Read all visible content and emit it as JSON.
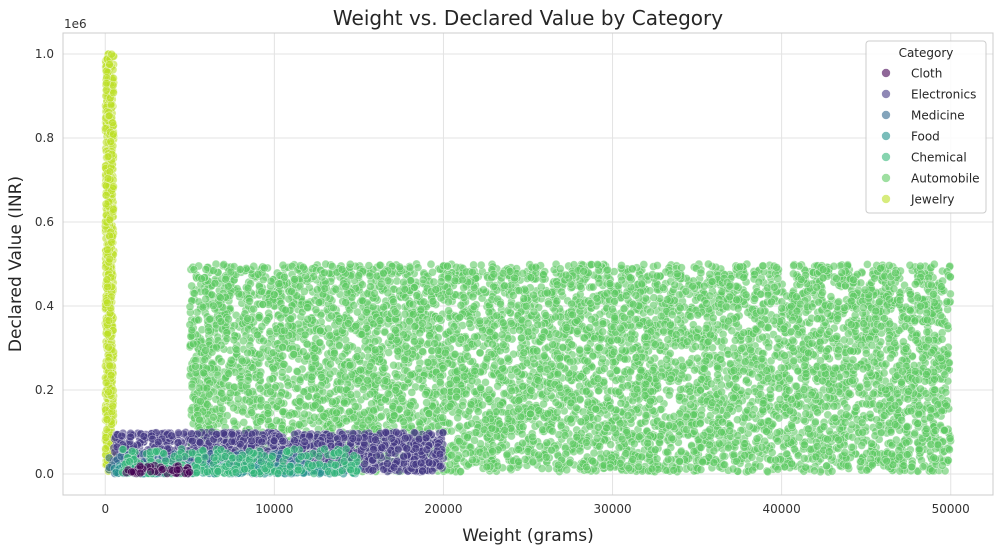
{
  "chart_data": {
    "type": "scatter",
    "title": "Weight vs. Declared Value by Category",
    "xlabel": "Weight (grams)",
    "ylabel": "Declared Value (INR)",
    "y_offset_label": "1e6",
    "xlim": [
      -2500,
      52500
    ],
    "ylim": [
      -50000,
      1050000
    ],
    "x_ticks": [
      0,
      10000,
      20000,
      30000,
      40000,
      50000
    ],
    "x_tick_labels": [
      "0",
      "10000",
      "20000",
      "30000",
      "40000",
      "50000"
    ],
    "y_ticks": [
      0,
      200000,
      400000,
      600000,
      800000,
      1000000
    ],
    "y_tick_labels": [
      "0.0",
      "0.2",
      "0.4",
      "0.6",
      "0.8",
      "1.0"
    ],
    "grid": true,
    "legend_position": "top-right",
    "legend_title": "Category",
    "series": [
      {
        "name": "Cloth",
        "color": "#440154",
        "x_range": [
          1000,
          5000
        ],
        "y_range": [
          1000,
          20000
        ]
      },
      {
        "name": "Electronics",
        "color": "#443983",
        "x_range": [
          500,
          20000
        ],
        "y_range": [
          5000,
          100000
        ]
      },
      {
        "name": "Medicine",
        "color": "#31688e",
        "x_range": [
          200,
          12000
        ],
        "y_range": [
          1000,
          50000
        ]
      },
      {
        "name": "Food",
        "color": "#21918c",
        "x_range": [
          500,
          15000
        ],
        "y_range": [
          500,
          20000
        ]
      },
      {
        "name": "Chemical",
        "color": "#35b779",
        "x_range": [
          1000,
          15000
        ],
        "y_range": [
          1000,
          60000
        ]
      },
      {
        "name": "Automobile",
        "color": "#5ec962",
        "x_range": [
          5000,
          50000
        ],
        "y_range": [
          5000,
          500000
        ]
      },
      {
        "name": "Jewelry",
        "color": "#bddf26",
        "x_range": [
          0,
          500
        ],
        "y_range": [
          5000,
          1000000
        ]
      }
    ],
    "point_alpha": 0.6
  }
}
